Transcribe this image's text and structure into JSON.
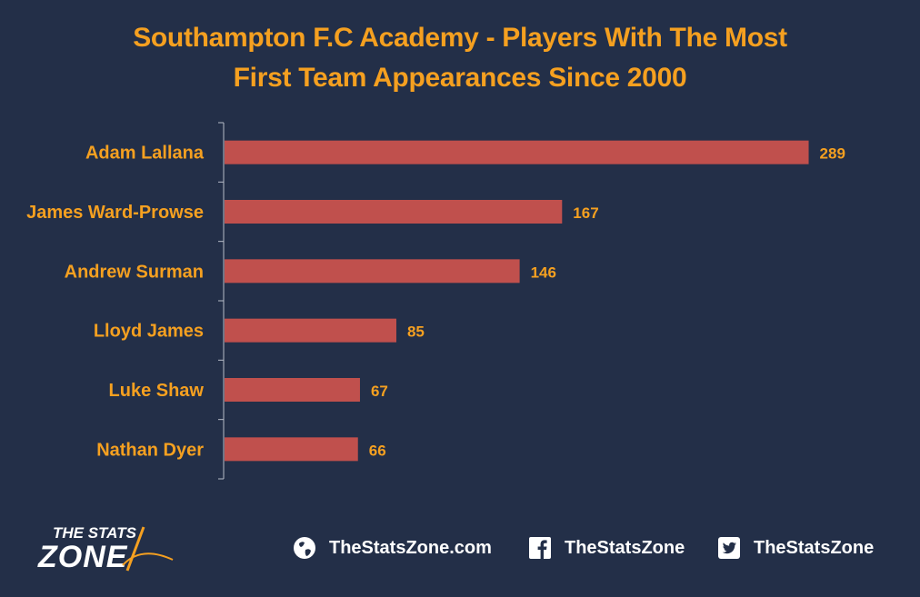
{
  "chart_data": {
    "type": "bar",
    "orientation": "horizontal",
    "title_lines": [
      "Southampton F.C Academy - Players With The Most",
      "First Team Appearances Since 2000"
    ],
    "categories": [
      "Adam Lallana",
      "James Ward-Prowse",
      "Andrew Surman",
      "Lloyd James",
      "Luke Shaw",
      "Nathan Dyer"
    ],
    "values": [
      289,
      167,
      146,
      85,
      67,
      66
    ],
    "xlim": [
      0,
      300
    ],
    "data_labels": true,
    "grid": false,
    "legend": "none",
    "colors": {
      "background": "#232f48",
      "bar": "#c0504d",
      "text": "#f5a020",
      "axis": "#b7bcc8"
    }
  },
  "footer": {
    "logo_text_top": "THE STATS",
    "logo_text_bottom": "ZONE",
    "website": {
      "icon": "globe-icon",
      "label": "TheStatsZone.com"
    },
    "facebook": {
      "icon": "facebook-icon",
      "label": "TheStatsZone"
    },
    "twitter": {
      "icon": "twitter-icon",
      "label": "TheStatsZone"
    }
  }
}
